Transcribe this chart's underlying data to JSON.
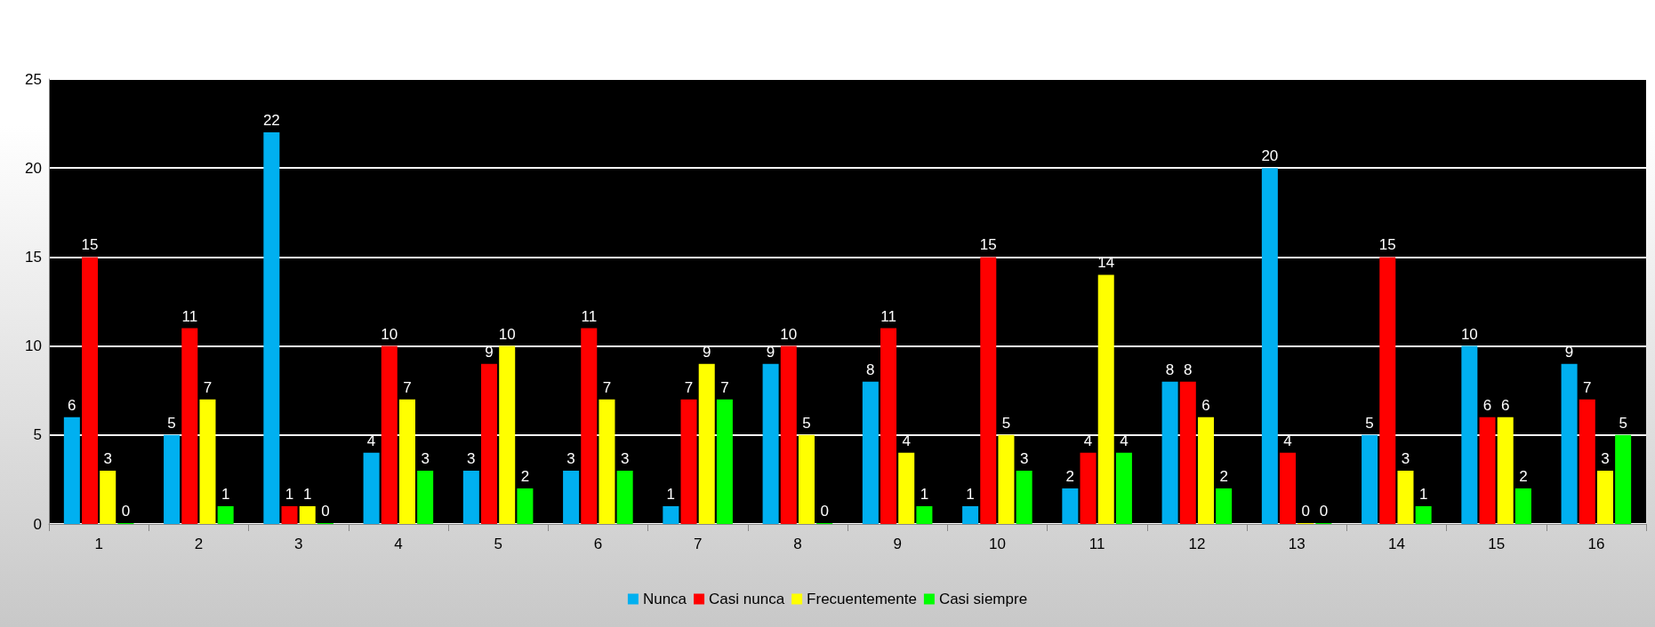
{
  "chart_data": {
    "type": "bar",
    "categories": [
      "1",
      "2",
      "3",
      "4",
      "5",
      "6",
      "7",
      "8",
      "9",
      "10",
      "11",
      "12",
      "13",
      "14",
      "15",
      "16"
    ],
    "series": [
      {
        "name": "Nunca",
        "color": "#00b0f0",
        "values": [
          6,
          5,
          22,
          4,
          3,
          3,
          1,
          9,
          8,
          1,
          2,
          8,
          20,
          5,
          10,
          9
        ]
      },
      {
        "name": "Casi nunca",
        "color": "#ff0000",
        "values": [
          15,
          11,
          1,
          10,
          9,
          11,
          7,
          10,
          11,
          15,
          4,
          8,
          4,
          15,
          6,
          7
        ]
      },
      {
        "name": "Frecuentemente",
        "color": "#ffff00",
        "values": [
          3,
          7,
          1,
          7,
          10,
          7,
          9,
          5,
          4,
          5,
          14,
          6,
          0,
          3,
          6,
          3
        ]
      },
      {
        "name": "Casi siempre",
        "color": "#00ff00",
        "values": [
          0,
          1,
          0,
          3,
          2,
          3,
          7,
          0,
          1,
          3,
          4,
          2,
          0,
          1,
          2,
          5
        ]
      }
    ],
    "ylim": [
      0,
      25
    ],
    "yticks": [
      0,
      5,
      10,
      15,
      20,
      25
    ],
    "grid": "y",
    "legend": "bottom",
    "data_labels": true
  }
}
